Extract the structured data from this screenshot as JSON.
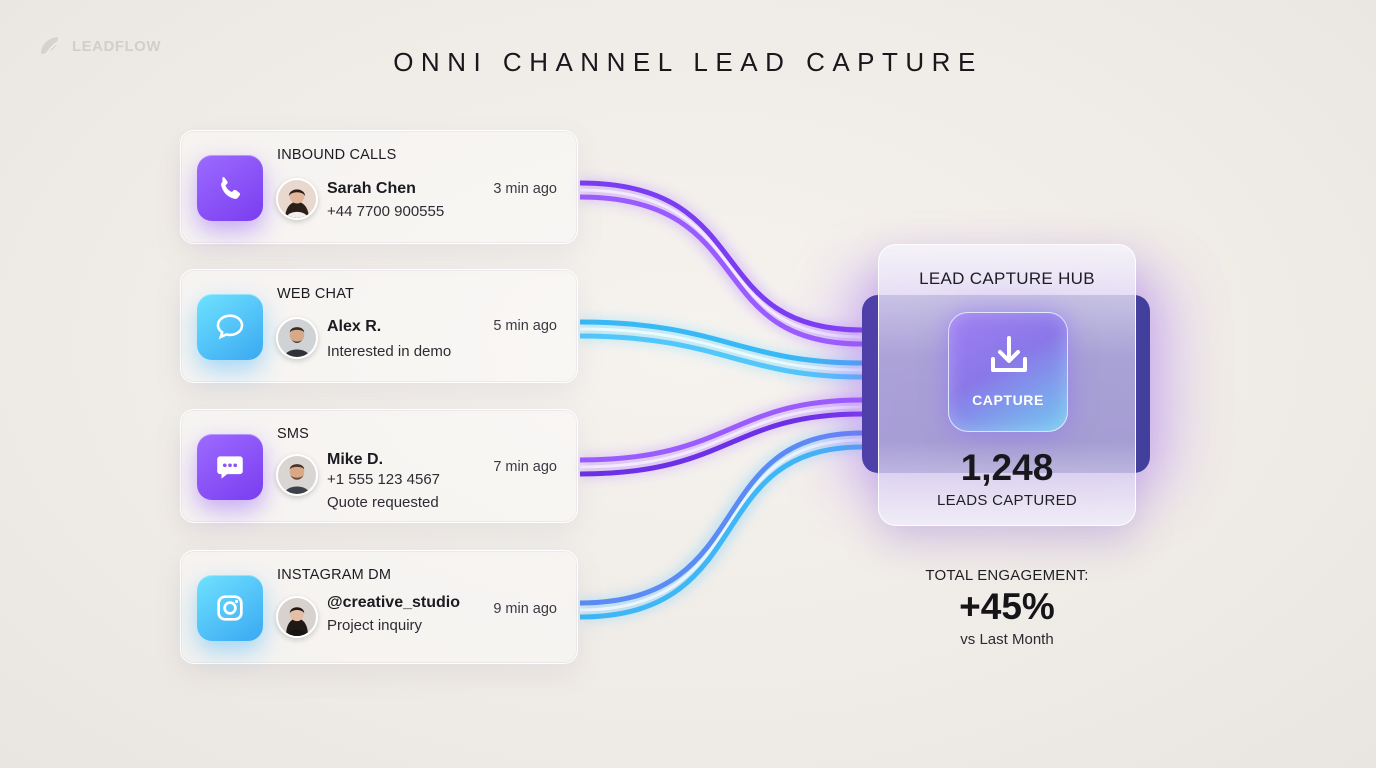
{
  "brand": {
    "name": "LEADFLOW",
    "icon": "leaf-logo-icon"
  },
  "title": "ONNI CHANNEL LEAD CAPTURE",
  "leads": [
    {
      "channel": "INBOUND CALLS",
      "icon": "phone-icon",
      "accent": "#8a55f7",
      "name": "Sarah Chen",
      "details": [
        "+44 7700 900555"
      ],
      "time": "3 min ago"
    },
    {
      "channel": "WEB CHAT",
      "icon": "chat-bubble-icon",
      "accent": "#45c3f7",
      "name": "Alex R.",
      "details": [
        "Interested in demo"
      ],
      "time": "5 min ago"
    },
    {
      "channel": "SMS",
      "icon": "message-dots-icon",
      "accent": "#8a55f7",
      "name": "Mike D.",
      "details": [
        "+1 555 123 4567",
        "Quote requested"
      ],
      "time": "7 min ago"
    },
    {
      "channel": "INSTAGRAM DM",
      "icon": "instagram-icon",
      "accent": "#45c3f7",
      "name": "@creative_studio",
      "details": [
        "Project inquiry"
      ],
      "time": "9 min ago"
    }
  ],
  "hub": {
    "title": "LEAD CAPTURE HUB",
    "button_label": "CAPTURE",
    "button_icon": "download-icon",
    "count": "1,248",
    "count_label": "LEADS CAPTURED"
  },
  "engagement": {
    "label": "TOTAL ENGAGEMENT:",
    "value": "+45%",
    "comparison": "vs Last Month"
  },
  "colors": {
    "purple": "#8a55f7",
    "cyan": "#45c3f7",
    "background": "#f3f0ec",
    "hub_dark": "#3a3a8f"
  }
}
